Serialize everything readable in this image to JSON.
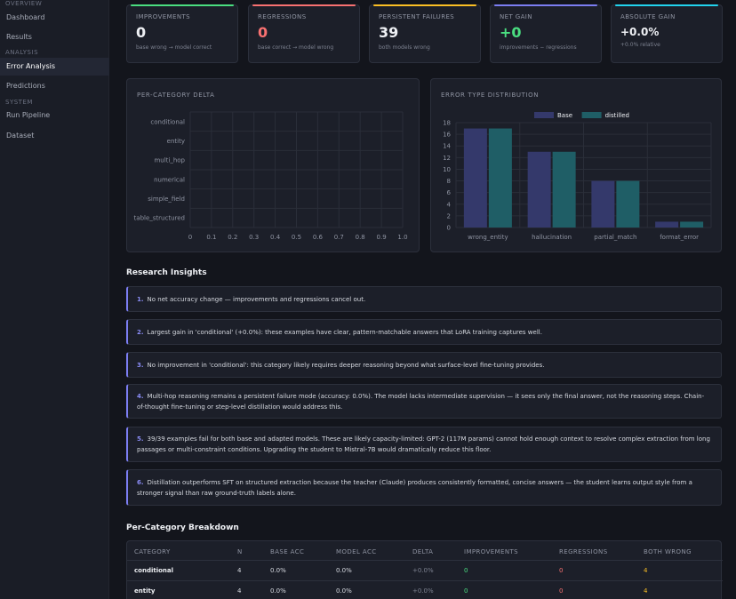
{
  "sidebar": {
    "sections": [
      "OVERVIEW",
      "ANALYSIS",
      "SYSTEM"
    ],
    "items": [
      {
        "label": "Dashboard"
      },
      {
        "label": "Results"
      },
      {
        "label": "Error Analysis"
      },
      {
        "label": "Predictions"
      },
      {
        "label": "Run Pipeline"
      },
      {
        "label": "Dataset"
      }
    ]
  },
  "cards": [
    {
      "label": "IMPROVEMENTS",
      "value": "0",
      "sub": "base wrong → model correct",
      "accent": "#4ade80",
      "value_color": "#eef0f4"
    },
    {
      "label": "REGRESSIONS",
      "value": "0",
      "sub": "base correct → model wrong",
      "accent": "#f87171",
      "value_color": "#f87171"
    },
    {
      "label": "PERSISTENT FAILURES",
      "value": "39",
      "sub": "both models wrong",
      "accent": "#fbbf24",
      "value_color": "#eef0f4"
    },
    {
      "label": "NET GAIN",
      "value": "+0",
      "sub": "improvements − regressions",
      "accent": "#7b7df2",
      "value_color": "#4ade80"
    },
    {
      "label": "ABSOLUTE GAIN",
      "value": "+0.0%",
      "sub": "+0.0% relative",
      "accent": "#22d3ee",
      "value_color": "#eef0f4"
    }
  ],
  "panels": {
    "delta_title": "PER-CATEGORY DELTA",
    "error_title": "ERROR TYPE DISTRIBUTION"
  },
  "chart_data": [
    {
      "type": "bar",
      "orientation": "horizontal",
      "title": "PER-CATEGORY DELTA",
      "categories": [
        "conditional",
        "entity",
        "multi_hop",
        "numerical",
        "simple_field",
        "table_structured"
      ],
      "values": [
        0,
        0,
        0,
        0,
        0,
        0
      ],
      "xlim": [
        0,
        1.0
      ],
      "xticks": [
        "0",
        "0.1",
        "0.2",
        "0.3",
        "0.4",
        "0.5",
        "0.6",
        "0.7",
        "0.8",
        "0.9",
        "1.0"
      ],
      "grid": true
    },
    {
      "type": "bar",
      "title": "ERROR TYPE DISTRIBUTION",
      "categories": [
        "wrong_entity",
        "hallucination",
        "partial_match",
        "format_error"
      ],
      "series": [
        {
          "name": "Base",
          "values": [
            17,
            13,
            8,
            1
          ],
          "color": "#34396b"
        },
        {
          "name": "distilled",
          "values": [
            17,
            13,
            8,
            1
          ],
          "color": "#1f5e66"
        }
      ],
      "ylim": [
        0,
        18
      ],
      "yticks": [
        "0",
        "2",
        "4",
        "6",
        "8",
        "10",
        "12",
        "14",
        "16",
        "18"
      ],
      "legend": "top-center",
      "grid": true
    }
  ],
  "insights_title": "Research Insights",
  "insights": [
    {
      "num": "1.",
      "text": "No net accuracy change — improvements and regressions cancel out."
    },
    {
      "num": "2.",
      "text": "Largest gain in 'conditional' (+0.0%): these examples have clear, pattern-matchable answers that LoRA training captures well."
    },
    {
      "num": "3.",
      "text": "No improvement in 'conditional': this category likely requires deeper reasoning beyond what surface-level fine-tuning provides."
    },
    {
      "num": "4.",
      "text": "Multi-hop reasoning remains a persistent failure mode (accuracy: 0.0%). The model lacks intermediate supervision — it sees only the final answer, not the reasoning steps. Chain-of-thought fine-tuning or step-level distillation would address this."
    },
    {
      "num": "5.",
      "text": "39/39 examples fail for both base and adapted models. These are likely capacity-limited: GPT-2 (117M params) cannot hold enough context to resolve complex extraction from long passages or multi-constraint conditions. Upgrading the student to Mistral-7B would dramatically reduce this floor."
    },
    {
      "num": "6.",
      "text": "Distillation outperforms SFT on structured extraction because the teacher (Claude) produces consistently formatted, concise answers — the student learns output style from a stronger signal than raw ground-truth labels alone."
    }
  ],
  "breakdown_title": "Per-Category Breakdown",
  "table": {
    "headers": [
      "CATEGORY",
      "N",
      "BASE ACC",
      "MODEL ACC",
      "DELTA",
      "IMPROVEMENTS",
      "REGRESSIONS",
      "BOTH WRONG"
    ],
    "rows": [
      [
        "conditional",
        "4",
        "0.0%",
        "0.0%",
        "+0.0%",
        "0",
        "0",
        "4"
      ],
      [
        "entity",
        "4",
        "0.0%",
        "0.0%",
        "+0.0%",
        "0",
        "0",
        "4"
      ]
    ]
  }
}
